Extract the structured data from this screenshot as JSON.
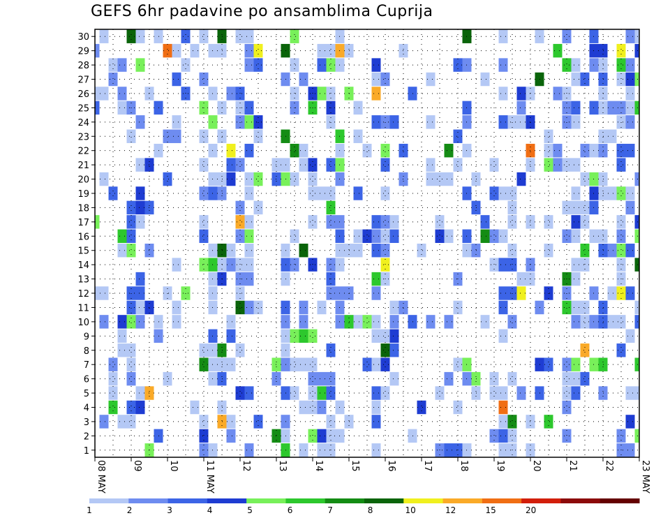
{
  "title": "GEFS 6hr padavine po ansamblima Cuprija",
  "chart_data": {
    "type": "heatmap",
    "title": "GEFS 6hr padavine po ansamblima Cuprija",
    "xlabel": "",
    "ylabel": "",
    "x_tick_labels": [
      "08 MAY",
      "09",
      "10",
      "11 MAY",
      "12",
      "13",
      "14",
      "15",
      "16",
      "17",
      "18",
      "19",
      "20",
      "21",
      "22",
      "23 MAY"
    ],
    "y_tick_labels": [
      "1",
      "2",
      "3",
      "4",
      "5",
      "6",
      "7",
      "8",
      "9",
      "10",
      "11",
      "12",
      "13",
      "14",
      "15",
      "16",
      "17",
      "18",
      "19",
      "20",
      "21",
      "22",
      "23",
      "24",
      "25",
      "26",
      "27",
      "28",
      "29",
      "30"
    ],
    "ylim": [
      0,
      30
    ],
    "grid": true,
    "legend_position": "bottom",
    "color_levels": [
      1,
      2,
      3,
      4,
      5,
      6,
      7,
      8,
      10,
      12,
      15,
      20
    ],
    "colors": [
      "#b4c8f5",
      "#6e8cf0",
      "#3c64e6",
      "#1e3cd2",
      "#78f05a",
      "#2dc82d",
      "#148c14",
      "#0a640a",
      "#f0f01e",
      "#faaa28",
      "#f06e14",
      "#d21e0a",
      "#8c0a0a",
      "#640000"
    ],
    "legend_labels": [
      "1",
      "2",
      "3",
      "4",
      "5",
      "6",
      "7",
      "8",
      "10",
      "12",
      "15",
      "20"
    ],
    "note_cells": "cells: [member, step, colorIndex]"
  }
}
